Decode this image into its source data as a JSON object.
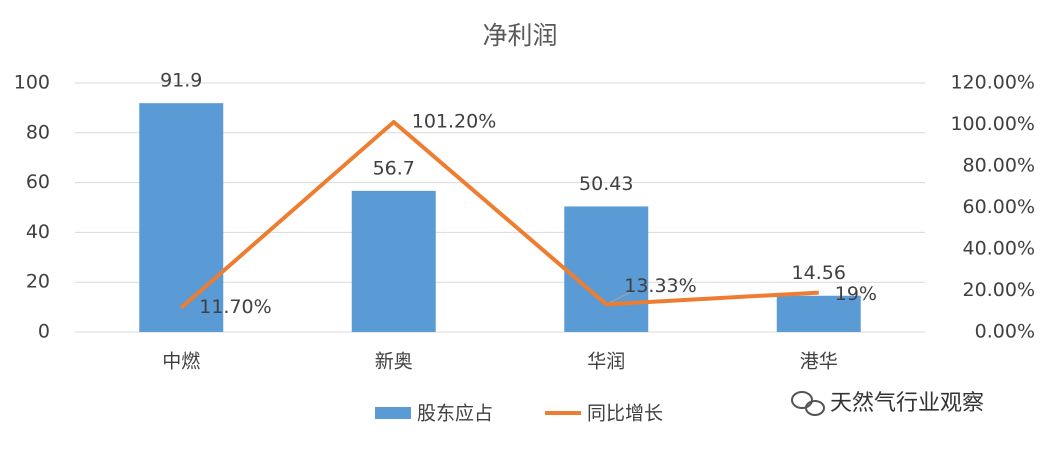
{
  "chart_data": {
    "type": "combo",
    "title": "净利润",
    "categories": [
      "中燃",
      "新奥",
      "华润",
      "港华"
    ],
    "series": [
      {
        "name": "股东应占",
        "type": "bar",
        "color": "#5b9bd5",
        "values": [
          91.9,
          56.7,
          50.43,
          14.56
        ]
      },
      {
        "name": "同比增长",
        "type": "line",
        "axis": "y2",
        "color": "#ed7d31",
        "values": [
          11.7,
          101.2,
          13.33,
          19
        ],
        "value_labels": [
          "11.70%",
          "101.20%",
          "13.33%",
          "19%"
        ]
      }
    ],
    "ylim": [
      0,
      100
    ],
    "yticks": [
      0,
      20,
      40,
      60,
      80,
      100
    ],
    "y2lim": [
      0,
      120
    ],
    "y2ticks": [
      {
        "value": 0,
        "label": "0.00%"
      },
      {
        "value": 20,
        "label": "20.00%"
      },
      {
        "value": 40,
        "label": "40.00%"
      },
      {
        "value": 60,
        "label": "60.00%"
      },
      {
        "value": 80,
        "label": "80.00%"
      },
      {
        "value": 100,
        "label": "100.00%"
      },
      {
        "value": 120,
        "label": "120.00%"
      }
    ],
    "grid": true,
    "legend": "bottom"
  },
  "watermark": "天然气行业观察"
}
